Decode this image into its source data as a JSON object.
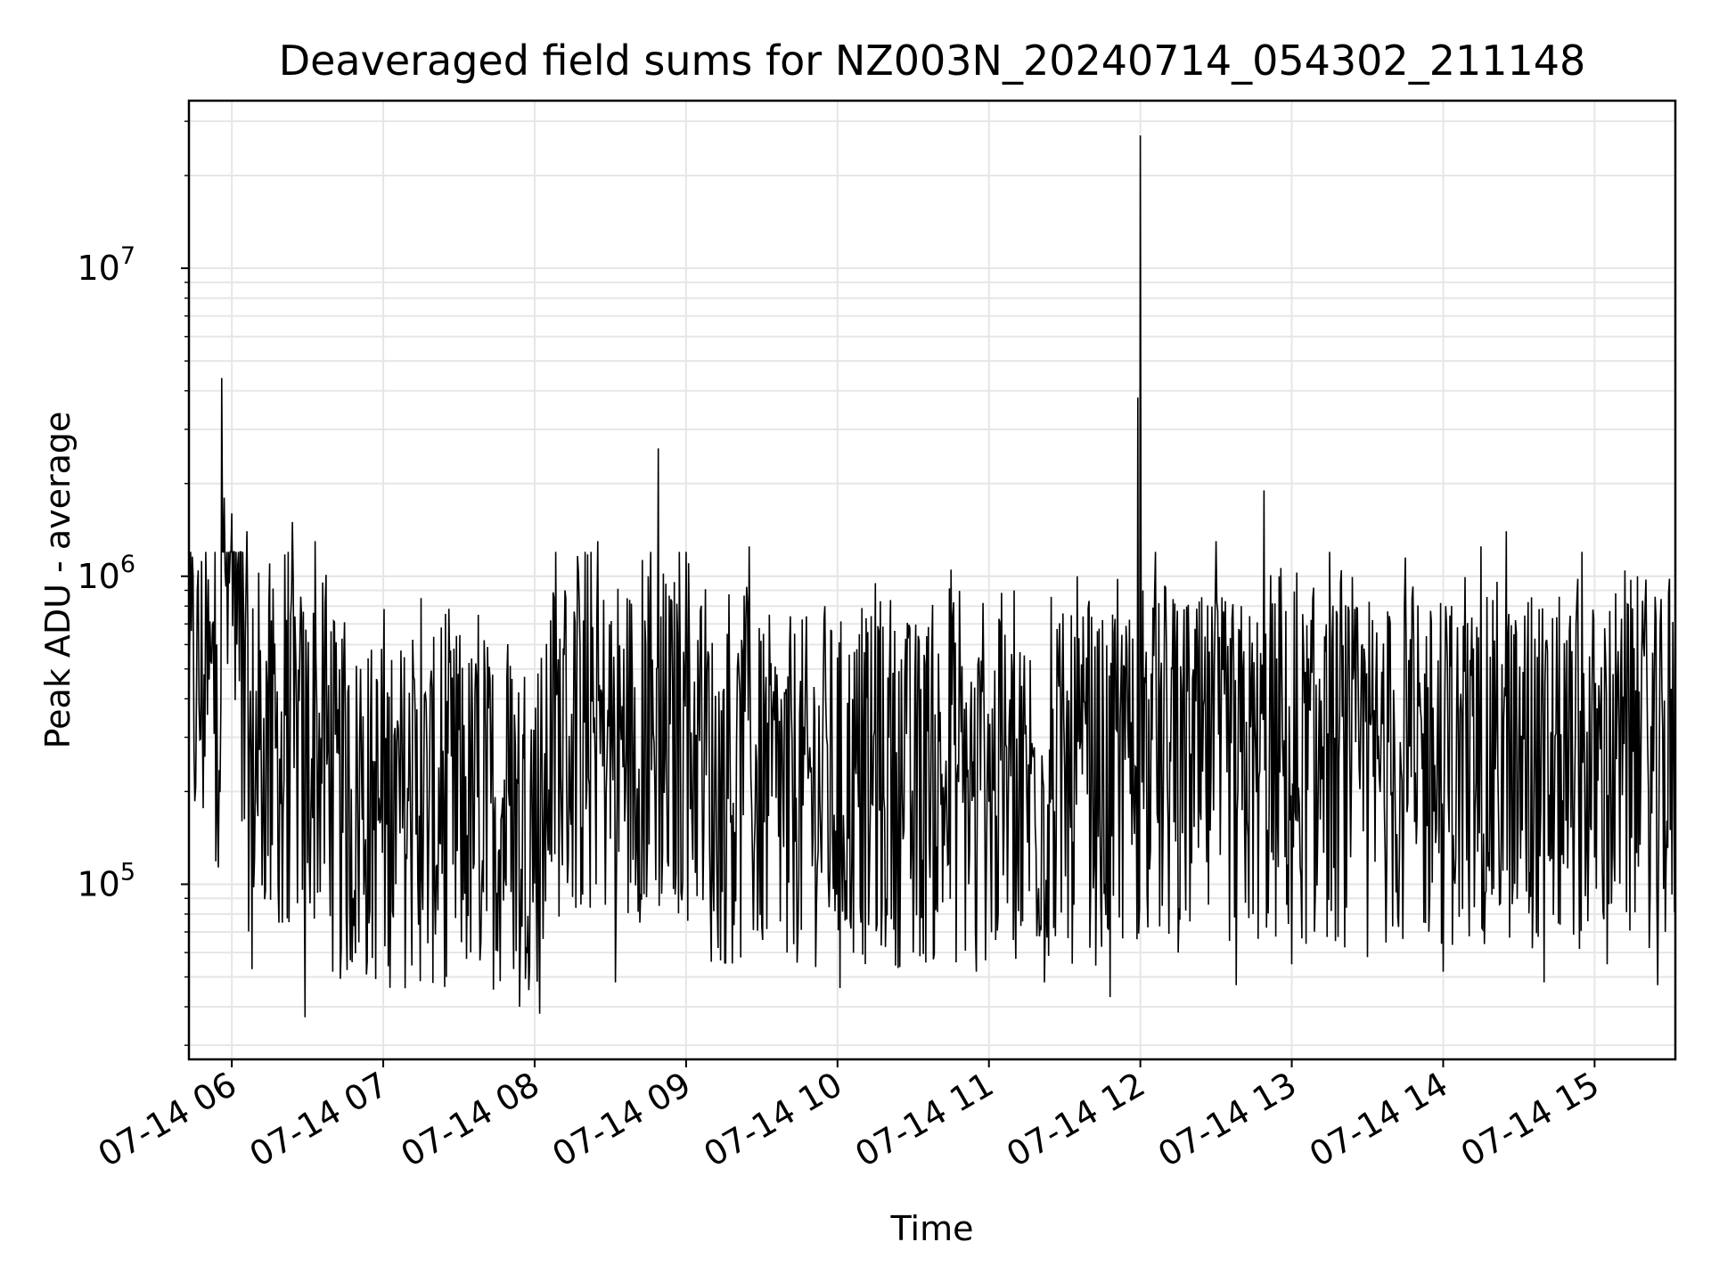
{
  "chart_data": {
    "type": "line",
    "title": "Deaveraged field sums for NZ003N_20240714_054302_211148",
    "xlabel": "Time",
    "ylabel": "Peak ADU - average",
    "x_tick_labels": [
      "07-14 06",
      "07-14 07",
      "07-14 08",
      "07-14 09",
      "07-14 10",
      "07-14 11",
      "07-14 12",
      "07-14 13",
      "07-14 14",
      "07-14 15"
    ],
    "x_tick_times": [
      "2024-07-14 06:00",
      "2024-07-14 07:00",
      "2024-07-14 08:00",
      "2024-07-14 09:00",
      "2024-07-14 10:00",
      "2024-07-14 11:00",
      "2024-07-14 12:00",
      "2024-07-14 13:00",
      "2024-07-14 14:00",
      "2024-07-14 15:00"
    ],
    "xlim": [
      "2024-07-14 05:43",
      "2024-07-14 15:32"
    ],
    "y_scale": "log",
    "ylim": [
      27000,
      35000000
    ],
    "y_tick_labels": [
      {
        "value": 100000,
        "base": "10",
        "exp": "5"
      },
      {
        "value": 1000000,
        "base": "10",
        "exp": "6"
      },
      {
        "value": 10000000,
        "base": "10",
        "exp": "7"
      }
    ],
    "grid": true,
    "series": [
      {
        "color": "#000000",
        "points": [
          [
            "2024-07-14 05:43",
            330000
          ],
          [
            "2024-07-14 05:46",
            420000
          ],
          [
            "2024-07-14 05:49",
            480000
          ],
          [
            "2024-07-14 05:52",
            520000
          ],
          [
            "2024-07-14 05:54",
            600000
          ],
          [
            "2024-07-14 05:56",
            4400000
          ],
          [
            "2024-07-14 05:57",
            1800000
          ],
          [
            "2024-07-14 05:58",
            1200000
          ],
          [
            "2024-07-14 06:00",
            1600000
          ],
          [
            "2024-07-14 06:02",
            600000
          ],
          [
            "2024-07-14 06:04",
            160000
          ],
          [
            "2024-07-14 06:06",
            1400000
          ],
          [
            "2024-07-14 06:08",
            53000
          ],
          [
            "2024-07-14 06:15",
            1100000
          ],
          [
            "2024-07-14 06:20",
            75000
          ],
          [
            "2024-07-14 06:24",
            1500000
          ],
          [
            "2024-07-14 06:29",
            37000
          ],
          [
            "2024-07-14 06:33",
            1300000
          ],
          [
            "2024-07-14 06:40",
            52000
          ],
          [
            "2024-07-14 06:51",
            500000
          ],
          [
            "2024-07-14 07:05",
            100000
          ],
          [
            "2024-07-14 07:15",
            850000
          ],
          [
            "2024-07-14 07:25",
            50000
          ],
          [
            "2024-07-14 07:40",
            620000
          ],
          [
            "2024-07-14 07:54",
            40000
          ],
          [
            "2024-07-14 08:02",
            38000
          ],
          [
            "2024-07-14 08:12",
            900000
          ],
          [
            "2024-07-14 08:25",
            1300000
          ],
          [
            "2024-07-14 08:32",
            48000
          ],
          [
            "2024-07-14 08:45",
            1000000
          ],
          [
            "2024-07-14 08:49",
            2600000
          ],
          [
            "2024-07-14 09:00",
            1200000
          ],
          [
            "2024-07-14 09:10",
            56000
          ],
          [
            "2024-07-14 09:25",
            1250000
          ],
          [
            "2024-07-14 09:40",
            60000
          ],
          [
            "2024-07-14 09:55",
            800000
          ],
          [
            "2024-07-14 10:01",
            46000
          ],
          [
            "2024-07-14 10:15",
            950000
          ],
          [
            "2024-07-14 10:30",
            60000
          ],
          [
            "2024-07-14 10:45",
            1050000
          ],
          [
            "2024-07-14 10:55",
            52000
          ],
          [
            "2024-07-14 11:10",
            900000
          ],
          [
            "2024-07-14 11:22",
            48000
          ],
          [
            "2024-07-14 11:35",
            1000000
          ],
          [
            "2024-07-14 11:48",
            43000
          ],
          [
            "2024-07-14 11:59",
            3800000
          ],
          [
            "2024-07-14 12:00",
            27000000
          ],
          [
            "2024-07-14 12:01",
            900000
          ],
          [
            "2024-07-14 12:06",
            1200000
          ],
          [
            "2024-07-14 12:15",
            60000
          ],
          [
            "2024-07-14 12:30",
            1300000
          ],
          [
            "2024-07-14 12:38",
            47000
          ],
          [
            "2024-07-14 12:49",
            1900000
          ],
          [
            "2024-07-14 13:00",
            55000
          ],
          [
            "2024-07-14 13:15",
            1200000
          ],
          [
            "2024-07-14 13:30",
            58000
          ],
          [
            "2024-07-14 13:45",
            1150000
          ],
          [
            "2024-07-14 14:00",
            52000
          ],
          [
            "2024-07-14 14:15",
            1250000
          ],
          [
            "2024-07-14 14:25",
            1400000
          ],
          [
            "2024-07-14 14:40",
            48000
          ],
          [
            "2024-07-14 14:55",
            1200000
          ],
          [
            "2024-07-14 15:05",
            55000
          ],
          [
            "2024-07-14 15:17",
            1000000
          ],
          [
            "2024-07-14 15:25",
            47000
          ],
          [
            "2024-07-14 15:32",
            290000
          ]
        ]
      }
    ]
  }
}
